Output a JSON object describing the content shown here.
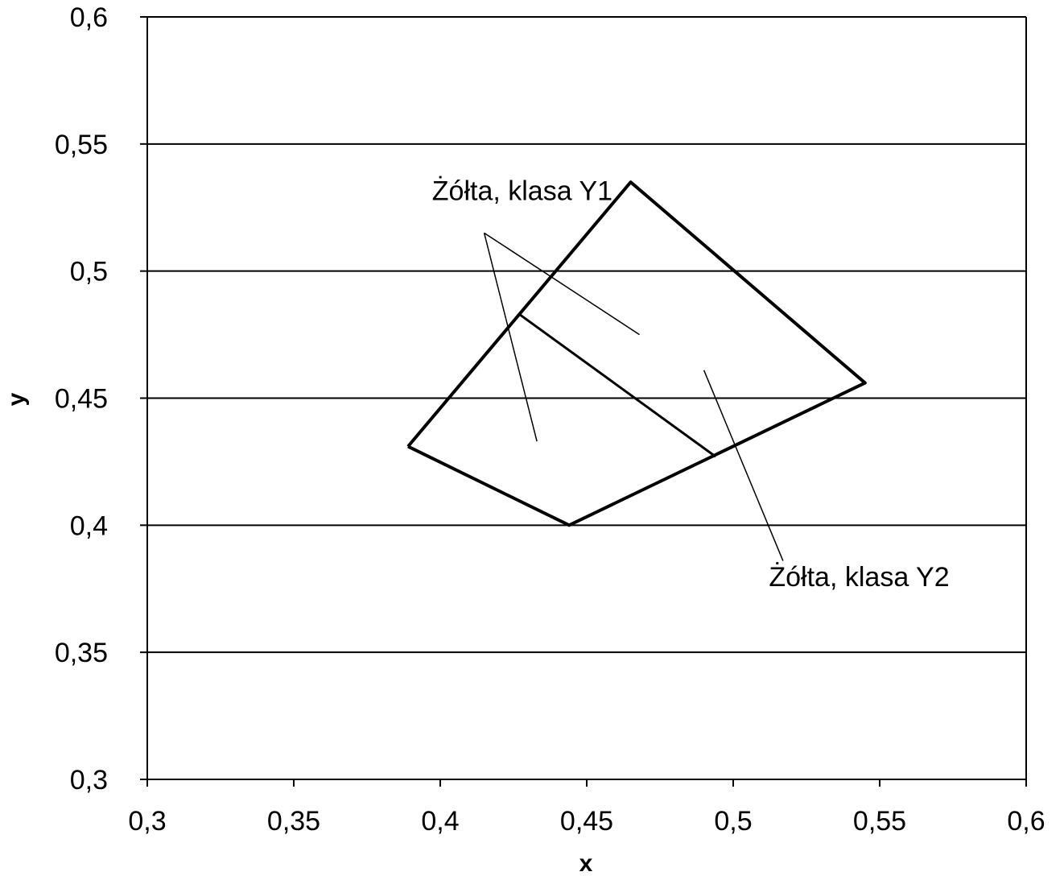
{
  "chart_data": {
    "type": "scatter",
    "title": "",
    "xlabel": "x",
    "ylabel": "y",
    "xlim": [
      0.3,
      0.6
    ],
    "ylim": [
      0.3,
      0.6
    ],
    "x_ticks": [
      0.3,
      0.35,
      0.4,
      0.45,
      0.5,
      0.55,
      0.6
    ],
    "y_ticks": [
      0.3,
      0.35,
      0.4,
      0.45,
      0.5,
      0.55,
      0.6
    ],
    "x_tick_labels": [
      "0,3",
      "0,35",
      "0,4",
      "0,45",
      "0,5",
      "0,55",
      "0,6"
    ],
    "y_tick_labels": [
      "0,3",
      "0,35",
      "0,4",
      "0,45",
      "0,5",
      "0,55",
      "0,6"
    ],
    "grid": "horizontal",
    "outline_points": [
      [
        0.389,
        0.431
      ],
      [
        0.465,
        0.535
      ],
      [
        0.545,
        0.456
      ],
      [
        0.444,
        0.4
      ],
      [
        0.389,
        0.431
      ]
    ],
    "divider_points": [
      [
        0.427,
        0.483
      ],
      [
        0.494,
        0.427
      ]
    ],
    "annotations": [
      {
        "text": "Żółta, klasa Y1",
        "text_position": [
          0.428,
          0.528
        ],
        "leaders": [
          [
            [
              0.415,
              0.515
            ],
            [
              0.433,
              0.433
            ]
          ],
          [
            [
              0.415,
              0.515
            ],
            [
              0.468,
              0.475
            ]
          ]
        ]
      },
      {
        "text": "Żółta, klasa Y2",
        "text_position": [
          0.543,
          0.376
        ],
        "leaders": [
          [
            [
              0.517,
              0.386
            ],
            [
              0.49,
              0.461
            ]
          ]
        ]
      }
    ]
  }
}
